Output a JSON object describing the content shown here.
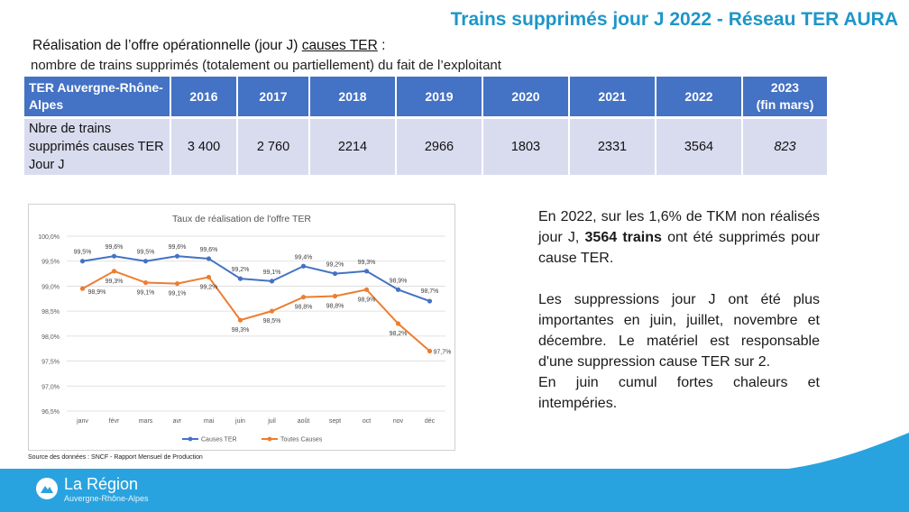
{
  "header": {
    "title": "Trains supprimés jour J 2022 - Réseau TER AURA",
    "heading_prefix": "Réalisation de l’offre opérationnelle (jour J) ",
    "heading_underlined": "causes TER",
    "heading_suffix": " :",
    "subheading": "nombre de trains supprimés (totalement ou partiellement) du fait de l’exploitant"
  },
  "table": {
    "header_first": "TER Auvergne-Rhône-Alpes",
    "years": [
      "2016",
      "2017",
      "2018",
      "2019",
      "2020",
      "2021",
      "2022"
    ],
    "last_year_line1": "2023",
    "last_year_line2": "(fin mars)",
    "row_label": "Nbre de trains supprimés causes TER Jour J",
    "values": [
      "3 400",
      "2 760",
      "2214",
      "2966",
      "1803",
      "2331",
      "3564"
    ],
    "last_value": "823"
  },
  "chart_data": {
    "type": "line",
    "title": "Taux de réalisation de l'offre TER",
    "categories": [
      "janv",
      "févr",
      "mars",
      "avr",
      "mai",
      "juin",
      "juil",
      "août",
      "sept",
      "oct",
      "nov",
      "déc"
    ],
    "y_ticks": [
      "100,0%",
      "99,5%",
      "99,0%",
      "98,5%",
      "98,0%",
      "97,5%",
      "97,0%",
      "96,5%"
    ],
    "ylim": [
      96.5,
      100.0
    ],
    "grid": true,
    "legend_position": "bottom",
    "series": [
      {
        "name": "Causes TER",
        "color": "#4472c4",
        "values": [
          99.5,
          99.6,
          99.5,
          99.6,
          99.55,
          99.15,
          99.1,
          99.4,
          99.25,
          99.3,
          98.93,
          98.7
        ],
        "labels": [
          "99,5%",
          "99,6%",
          "99,5%",
          "99,6%",
          "99,6%",
          "99,2%",
          "99,1%",
          "99,4%",
          "99,2%",
          "99,3%",
          "98,9%",
          "98,7%"
        ]
      },
      {
        "name": "Toutes Causes",
        "color": "#ed7d31",
        "values": [
          98.95,
          99.3,
          99.07,
          99.05,
          99.18,
          98.32,
          98.5,
          98.78,
          98.8,
          98.93,
          98.25,
          97.7
        ],
        "labels": [
          "98,9%",
          "99,3%",
          "99,1%",
          "99,1%",
          "99,2%",
          "98,3%",
          "98,5%",
          "98,8%",
          "98,8%",
          "98,9%",
          "98,2%",
          "97,7%"
        ]
      }
    ]
  },
  "source": "Source des données : SNCF - Rapport Mensuel de Production",
  "commentary": {
    "p1_before": "En 2022, sur les 1,6% de TKM non réalisés jour J, ",
    "p1_bold": "3564 trains",
    "p1_after": " ont été supprimés pour cause TER.",
    "p2": "Les suppressions jour J ont été plus importantes en juin, juillet, novembre et décembre. Le matériel est responsable d'une suppression cause TER sur 2.",
    "p3": "En juin cumul fortes chaleurs et intempéries."
  },
  "footer": {
    "logo_name": "La Région",
    "logo_sub": "Auvergne-Rhône-Alpes"
  }
}
